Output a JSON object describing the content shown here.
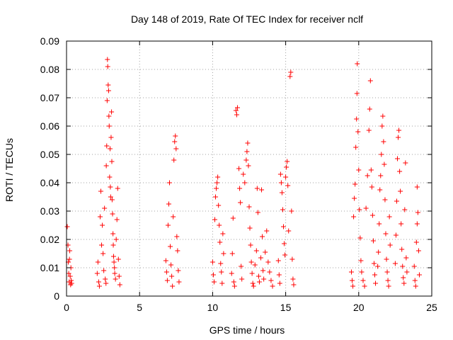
{
  "chart_data": {
    "type": "scatter",
    "title": "Day 148 of 2019, Rate Of TEC Index for receiver nclf",
    "xlabel": "GPS time / hours",
    "ylabel": "ROTI / TECUs",
    "xlim": [
      0,
      25
    ],
    "ylim": [
      0,
      0.09
    ],
    "x_ticks": [
      0,
      5,
      10,
      15,
      20,
      25
    ],
    "x_tick_labels": [
      "0",
      "5",
      "10",
      "15",
      "20",
      "25"
    ],
    "y_ticks": [
      0,
      0.01,
      0.02,
      0.03,
      0.04,
      0.05,
      0.06,
      0.07,
      0.08,
      0.09
    ],
    "y_tick_labels": [
      "0",
      "0.01",
      "0.02",
      "0.03",
      "0.04",
      "0.05",
      "0.06",
      "0.07",
      "0.08",
      "0.09"
    ],
    "grid": true,
    "marker": "+",
    "color": "#ff0000",
    "series": [
      {
        "name": "ROTI",
        "points": [
          [
            0.05,
            0.0245
          ],
          [
            0.1,
            0.018
          ],
          [
            0.12,
            0.012
          ],
          [
            0.15,
            0.008
          ],
          [
            0.18,
            0.005
          ],
          [
            0.2,
            0.013
          ],
          [
            0.22,
            0.016
          ],
          [
            0.25,
            0.007
          ],
          [
            0.28,
            0.004
          ],
          [
            0.3,
            0.01
          ],
          [
            0.32,
            0.0055
          ],
          [
            0.35,
            0.0045
          ],
          [
            2.1,
            0.008
          ],
          [
            2.15,
            0.012
          ],
          [
            2.2,
            0.005
          ],
          [
            2.25,
            0.0035
          ],
          [
            2.3,
            0.028
          ],
          [
            2.35,
            0.037
          ],
          [
            2.4,
            0.018
          ],
          [
            2.45,
            0.025
          ],
          [
            2.5,
            0.015
          ],
          [
            2.55,
            0.009
          ],
          [
            2.6,
            0.031
          ],
          [
            2.65,
            0.006
          ],
          [
            2.7,
            0.0045
          ],
          [
            2.72,
            0.046
          ],
          [
            2.75,
            0.053
          ],
          [
            2.78,
            0.069
          ],
          [
            2.8,
            0.0835
          ],
          [
            2.82,
            0.081
          ],
          [
            2.85,
            0.0745
          ],
          [
            2.88,
            0.0725
          ],
          [
            2.9,
            0.0635
          ],
          [
            2.92,
            0.06
          ],
          [
            2.95,
            0.042
          ],
          [
            2.98,
            0.052
          ],
          [
            3.0,
            0.0385
          ],
          [
            3.02,
            0.035
          ],
          [
            3.05,
            0.056
          ],
          [
            3.08,
            0.065
          ],
          [
            3.1,
            0.0475
          ],
          [
            3.12,
            0.034
          ],
          [
            3.15,
            0.029
          ],
          [
            3.18,
            0.022
          ],
          [
            3.2,
            0.018
          ],
          [
            3.22,
            0.014
          ],
          [
            3.25,
            0.012
          ],
          [
            3.28,
            0.01
          ],
          [
            3.3,
            0.008
          ],
          [
            3.35,
            0.006
          ],
          [
            3.4,
            0.02
          ],
          [
            3.45,
            0.027
          ],
          [
            3.5,
            0.038
          ],
          [
            3.55,
            0.013
          ],
          [
            3.6,
            0.007
          ],
          [
            3.65,
            0.004
          ],
          [
            6.8,
            0.0125
          ],
          [
            6.85,
            0.0085
          ],
          [
            6.9,
            0.0055
          ],
          [
            6.95,
            0.025
          ],
          [
            7.0,
            0.0325
          ],
          [
            7.05,
            0.04
          ],
          [
            7.1,
            0.0175
          ],
          [
            7.15,
            0.011
          ],
          [
            7.2,
            0.007
          ],
          [
            7.25,
            0.0035
          ],
          [
            7.3,
            0.028
          ],
          [
            7.35,
            0.048
          ],
          [
            7.4,
            0.0545
          ],
          [
            7.45,
            0.0565
          ],
          [
            7.5,
            0.052
          ],
          [
            7.55,
            0.021
          ],
          [
            7.6,
            0.016
          ],
          [
            7.65,
            0.009
          ],
          [
            7.7,
            0.005
          ],
          [
            10.0,
            0.012
          ],
          [
            10.05,
            0.0075
          ],
          [
            10.1,
            0.005
          ],
          [
            10.15,
            0.027
          ],
          [
            10.2,
            0.035
          ],
          [
            10.25,
            0.038
          ],
          [
            10.3,
            0.04
          ],
          [
            10.35,
            0.042
          ],
          [
            10.4,
            0.032
          ],
          [
            10.45,
            0.025
          ],
          [
            10.5,
            0.019
          ],
          [
            10.55,
            0.0115
          ],
          [
            10.6,
            0.0085
          ],
          [
            10.65,
            0.0045
          ],
          [
            10.7,
            0.022
          ],
          [
            10.75,
            0.015
          ],
          [
            11.3,
            0.008
          ],
          [
            11.35,
            0.015
          ],
          [
            11.4,
            0.0275
          ],
          [
            11.45,
            0.005
          ],
          [
            11.5,
            0.0035
          ],
          [
            11.6,
            0.0655
          ],
          [
            11.65,
            0.064
          ],
          [
            11.7,
            0.0665
          ],
          [
            11.8,
            0.045
          ],
          [
            11.85,
            0.038
          ],
          [
            11.9,
            0.033
          ],
          [
            11.95,
            0.0105
          ],
          [
            12.0,
            0.006
          ],
          [
            12.1,
            0.043
          ],
          [
            12.2,
            0.04
          ],
          [
            12.3,
            0.048
          ],
          [
            12.35,
            0.051
          ],
          [
            12.4,
            0.054
          ],
          [
            12.45,
            0.046
          ],
          [
            12.5,
            0.0315
          ],
          [
            12.55,
            0.024
          ],
          [
            12.6,
            0.018
          ],
          [
            12.65,
            0.012
          ],
          [
            12.7,
            0.008
          ],
          [
            12.75,
            0.0045
          ],
          [
            12.8,
            0.0035
          ],
          [
            12.9,
            0.011
          ],
          [
            13.0,
            0.016
          ],
          [
            13.05,
            0.038
          ],
          [
            13.1,
            0.0295
          ],
          [
            13.15,
            0.007
          ],
          [
            13.2,
            0.005
          ],
          [
            13.3,
            0.0135
          ],
          [
            13.35,
            0.0375
          ],
          [
            13.4,
            0.021
          ],
          [
            13.45,
            0.009
          ],
          [
            13.5,
            0.006
          ],
          [
            13.6,
            0.0155
          ],
          [
            13.7,
            0.023
          ],
          [
            13.8,
            0.012
          ],
          [
            13.9,
            0.0085
          ],
          [
            14.0,
            0.0055
          ],
          [
            14.1,
            0.0035
          ],
          [
            14.5,
            0.0125
          ],
          [
            14.55,
            0.0075
          ],
          [
            14.6,
            0.0045
          ],
          [
            14.65,
            0.043
          ],
          [
            14.7,
            0.04
          ],
          [
            14.75,
            0.0365
          ],
          [
            14.8,
            0.0305
          ],
          [
            14.85,
            0.0245
          ],
          [
            14.9,
            0.0185
          ],
          [
            14.95,
            0.0145
          ],
          [
            15.0,
            0.042
          ],
          [
            15.05,
            0.0455
          ],
          [
            15.1,
            0.0475
          ],
          [
            15.15,
            0.039
          ],
          [
            15.2,
            0.023
          ],
          [
            15.3,
            0.0775
          ],
          [
            15.35,
            0.079
          ],
          [
            15.4,
            0.03
          ],
          [
            15.45,
            0.013
          ],
          [
            15.5,
            0.006
          ],
          [
            15.55,
            0.004
          ],
          [
            19.5,
            0.0085
          ],
          [
            19.55,
            0.0055
          ],
          [
            19.6,
            0.0035
          ],
          [
            19.65,
            0.028
          ],
          [
            19.7,
            0.0345
          ],
          [
            19.75,
            0.0395
          ],
          [
            19.8,
            0.0525
          ],
          [
            19.85,
            0.0625
          ],
          [
            19.88,
            0.0715
          ],
          [
            19.9,
            0.082
          ],
          [
            19.95,
            0.058
          ],
          [
            20.0,
            0.0445
          ],
          [
            20.05,
            0.0305
          ],
          [
            20.1,
            0.0205
          ],
          [
            20.15,
            0.0125
          ],
          [
            20.2,
            0.0085
          ],
          [
            20.3,
            0.0055
          ],
          [
            20.4,
            0.0035
          ],
          [
            20.5,
            0.031
          ],
          [
            20.6,
            0.0425
          ],
          [
            20.7,
            0.0585
          ],
          [
            20.75,
            0.066
          ],
          [
            20.8,
            0.076
          ],
          [
            20.85,
            0.0445
          ],
          [
            20.9,
            0.0385
          ],
          [
            20.95,
            0.0285
          ],
          [
            21.0,
            0.0195
          ],
          [
            21.05,
            0.0115
          ],
          [
            21.1,
            0.0075
          ],
          [
            21.15,
            0.0045
          ],
          [
            21.3,
            0.0105
          ],
          [
            21.35,
            0.0155
          ],
          [
            21.4,
            0.0255
          ],
          [
            21.45,
            0.0375
          ],
          [
            21.5,
            0.0425
          ],
          [
            21.55,
            0.05
          ],
          [
            21.6,
            0.06
          ],
          [
            21.65,
            0.0635
          ],
          [
            21.7,
            0.0545
          ],
          [
            21.75,
            0.0465
          ],
          [
            21.8,
            0.034
          ],
          [
            21.85,
            0.022
          ],
          [
            21.9,
            0.013
          ],
          [
            21.95,
            0.0085
          ],
          [
            22.0,
            0.0055
          ],
          [
            22.05,
            0.0035
          ],
          [
            22.1,
            0.028
          ],
          [
            22.15,
            0.018
          ],
          [
            22.5,
            0.0115
          ],
          [
            22.55,
            0.0215
          ],
          [
            22.6,
            0.0335
          ],
          [
            22.65,
            0.0485
          ],
          [
            22.7,
            0.056
          ],
          [
            22.75,
            0.0585
          ],
          [
            22.8,
            0.044
          ],
          [
            22.85,
            0.037
          ],
          [
            22.9,
            0.0255
          ],
          [
            22.95,
            0.0165
          ],
          [
            23.0,
            0.0105
          ],
          [
            23.05,
            0.0065
          ],
          [
            23.1,
            0.0045
          ],
          [
            23.15,
            0.0305
          ],
          [
            23.2,
            0.047
          ],
          [
            23.25,
            0.0135
          ],
          [
            23.3,
            0.0085
          ],
          [
            23.8,
            0.0105
          ],
          [
            23.85,
            0.0055
          ],
          [
            23.9,
            0.0035
          ],
          [
            23.95,
            0.019
          ],
          [
            24.0,
            0.0255
          ],
          [
            24.05,
            0.0295
          ],
          [
            24.0,
            0.0385
          ],
          [
            24.1,
            0.016
          ],
          [
            24.15,
            0.0075
          ]
        ]
      }
    ]
  }
}
